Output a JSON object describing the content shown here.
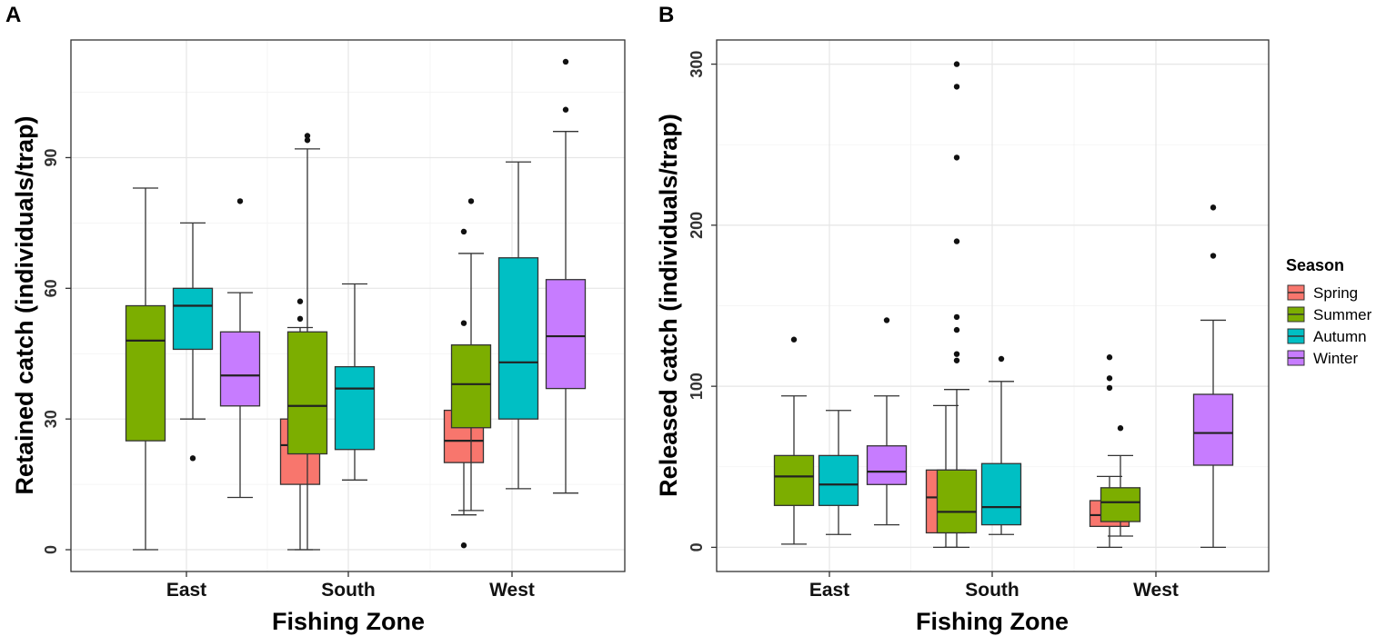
{
  "legend": {
    "title": "Season",
    "items": [
      {
        "label": "Spring",
        "color": "#F8766D"
      },
      {
        "label": "Summer",
        "color": "#7CAE00"
      },
      {
        "label": "Autumn",
        "color": "#00BFC4"
      },
      {
        "label": "Winter",
        "color": "#C77CFF"
      }
    ]
  },
  "chart_data": [
    {
      "type": "boxplot",
      "panel": "A",
      "xlabel": "Fishing Zone",
      "ylabel": "Retained catch (individuals/trap)",
      "categories": [
        "East",
        "South",
        "West"
      ],
      "ylim": [
        -5,
        117
      ],
      "yticks": [
        0,
        30,
        60,
        90
      ],
      "boxes": [
        {
          "zone": "East",
          "season": "Summer",
          "whislo": 0,
          "q1": 25,
          "med": 48,
          "q3": 56,
          "whishi": 83,
          "fliers": []
        },
        {
          "zone": "East",
          "season": "Autumn",
          "whislo": 30,
          "q1": 46,
          "med": 56,
          "q3": 60,
          "whishi": 75,
          "fliers": [
            21
          ]
        },
        {
          "zone": "East",
          "season": "Winter",
          "whislo": 12,
          "q1": 33,
          "med": 40,
          "q3": 50,
          "whishi": 59,
          "fliers": [
            80
          ]
        },
        {
          "zone": "South",
          "season": "Spring",
          "whislo": 0,
          "q1": 15,
          "med": 24,
          "q3": 30,
          "whishi": 51,
          "fliers": [
            53,
            57
          ]
        },
        {
          "zone": "South",
          "season": "Summer",
          "whislo": 0,
          "q1": 22,
          "med": 33,
          "q3": 50,
          "whishi": 92,
          "fliers": [
            94,
            95
          ]
        },
        {
          "zone": "South",
          "season": "Autumn",
          "whislo": 16,
          "q1": 23,
          "med": 37,
          "q3": 42,
          "whishi": 61,
          "fliers": []
        },
        {
          "zone": "West",
          "season": "Spring",
          "whislo": 8,
          "q1": 20,
          "med": 25,
          "q3": 32,
          "whishi": 41,
          "fliers": [
            1,
            52,
            73
          ]
        },
        {
          "zone": "West",
          "season": "Summer",
          "whislo": 9,
          "q1": 28,
          "med": 38,
          "q3": 47,
          "whishi": 68,
          "fliers": [
            80
          ]
        },
        {
          "zone": "West",
          "season": "Autumn",
          "whislo": 14,
          "q1": 30,
          "med": 43,
          "q3": 67,
          "whishi": 89,
          "fliers": []
        },
        {
          "zone": "West",
          "season": "Winter",
          "whislo": 13,
          "q1": 37,
          "med": 49,
          "q3": 62,
          "whishi": 96,
          "fliers": [
            101,
            112
          ]
        }
      ]
    },
    {
      "type": "boxplot",
      "panel": "B",
      "xlabel": "Fishing Zone",
      "ylabel": "Released catch (individuals/trap)",
      "categories": [
        "East",
        "South",
        "West"
      ],
      "ylim": [
        -15,
        315
      ],
      "yticks": [
        0,
        100,
        200,
        300
      ],
      "boxes": [
        {
          "zone": "East",
          "season": "Summer",
          "whislo": 2,
          "q1": 26,
          "med": 44,
          "q3": 57,
          "whishi": 94,
          "fliers": [
            129
          ]
        },
        {
          "zone": "East",
          "season": "Autumn",
          "whislo": 8,
          "q1": 26,
          "med": 39,
          "q3": 57,
          "whishi": 85,
          "fliers": []
        },
        {
          "zone": "East",
          "season": "Winter",
          "whislo": 14,
          "q1": 39,
          "med": 47,
          "q3": 63,
          "whishi": 94,
          "fliers": [
            141
          ]
        },
        {
          "zone": "South",
          "season": "Spring",
          "whislo": 0,
          "q1": 9,
          "med": 31,
          "q3": 48,
          "whishi": 88,
          "fliers": []
        },
        {
          "zone": "South",
          "season": "Summer",
          "whislo": 0,
          "q1": 9,
          "med": 22,
          "q3": 48,
          "whishi": 98,
          "fliers": [
            116,
            120,
            135,
            143,
            190,
            242,
            286,
            300
          ]
        },
        {
          "zone": "South",
          "season": "Autumn",
          "whislo": 8,
          "q1": 14,
          "med": 25,
          "q3": 52,
          "whishi": 103,
          "fliers": [
            117
          ]
        },
        {
          "zone": "West",
          "season": "Spring",
          "whislo": 0,
          "q1": 13,
          "med": 20,
          "q3": 29,
          "whishi": 44,
          "fliers": [
            99,
            105,
            118
          ]
        },
        {
          "zone": "West",
          "season": "Summer",
          "whislo": 7,
          "q1": 16,
          "med": 28,
          "q3": 37,
          "whishi": 57,
          "fliers": [
            74
          ]
        },
        {
          "zone": "West",
          "season": "Winter",
          "whislo": 0,
          "q1": 51,
          "med": 71,
          "q3": 95,
          "whishi": 141,
          "fliers": [
            181,
            211
          ]
        }
      ]
    }
  ]
}
